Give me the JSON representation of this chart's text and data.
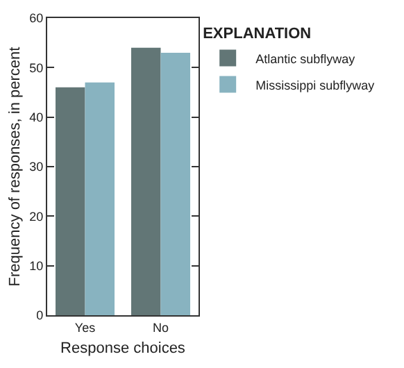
{
  "chart_data": {
    "type": "bar",
    "xlabel": "Response choices",
    "ylabel": "Frequency of responses, in percent",
    "legend_title": "EXPLANATION",
    "categories": [
      "Yes",
      "No"
    ],
    "series": [
      {
        "name": "Atlantic subflyway",
        "color": "#627676",
        "values": [
          46,
          54
        ]
      },
      {
        "name": "Mississippi subflyway",
        "color": "#88b3c0",
        "values": [
          47,
          53
        ]
      }
    ],
    "ylim": [
      0,
      60
    ],
    "yticks": [
      0,
      10,
      20,
      30,
      40,
      50,
      60
    ],
    "legend": "top right"
  }
}
